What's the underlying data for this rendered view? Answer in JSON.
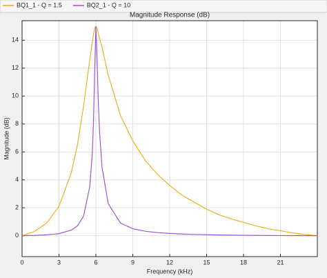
{
  "chart_data": {
    "type": "line",
    "title": "Magnitude Response (dB)",
    "x_label": "Frequency (kHz)",
    "y_label": "Magnitude (dB)",
    "x": [
      0,
      1,
      2,
      3,
      4,
      4.5,
      5,
      5.5,
      5.7,
      5.8,
      5.9,
      6,
      6.1,
      6.2,
      6.3,
      6.5,
      7,
      8,
      9,
      10,
      11,
      12,
      13,
      14,
      15,
      16,
      17,
      18,
      19,
      20,
      21,
      22,
      23,
      24
    ],
    "series": [
      {
        "name": "BQ1_1 - Q = 1.5",
        "color": "#edb120",
        "values": [
          0,
          0.3,
          0.9,
          2.1,
          4.5,
          6.5,
          9.3,
          12.6,
          13.8,
          14.4,
          14.85,
          15,
          14.85,
          14.5,
          14.1,
          13.5,
          11.5,
          8.6,
          6.8,
          5.4,
          4.4,
          3.6,
          2.9,
          2.4,
          1.9,
          1.5,
          1.2,
          0.95,
          0.7,
          0.5,
          0.35,
          0.2,
          0.08,
          0
        ]
      },
      {
        "name": "BQ2_1 - Q = 10",
        "color": "#a352d4",
        "values": [
          0,
          0.02,
          0.06,
          0.15,
          0.4,
          0.7,
          1.4,
          3.5,
          5.8,
          8,
          11.7,
          15,
          12.5,
          9.5,
          7.4,
          4.9,
          2.3,
          0.9,
          0.5,
          0.32,
          0.22,
          0.16,
          0.12,
          0.09,
          0.07,
          0.05,
          0.04,
          0.03,
          0.02,
          0.015,
          0.01,
          0.005,
          0.002,
          0
        ]
      }
    ],
    "xlim": [
      0,
      24
    ],
    "xticks": [
      0,
      3,
      6,
      9,
      12,
      15,
      18,
      21
    ],
    "ylim": [
      -1.5,
      15.4
    ],
    "yticks": [
      0,
      2,
      4,
      6,
      8,
      10,
      12,
      14
    ],
    "grid": true,
    "legend": "top"
  }
}
